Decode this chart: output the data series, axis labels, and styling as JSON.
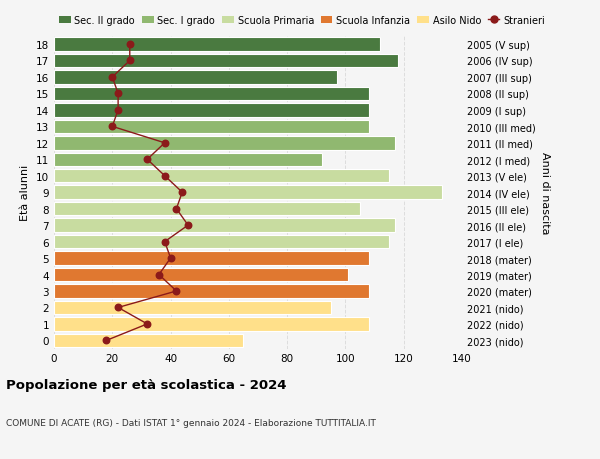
{
  "ages": [
    0,
    1,
    2,
    3,
    4,
    5,
    6,
    7,
    8,
    9,
    10,
    11,
    12,
    13,
    14,
    15,
    16,
    17,
    18
  ],
  "right_labels": [
    "2023 (nido)",
    "2022 (nido)",
    "2021 (nido)",
    "2020 (mater)",
    "2019 (mater)",
    "2018 (mater)",
    "2017 (I ele)",
    "2016 (II ele)",
    "2015 (III ele)",
    "2014 (IV ele)",
    "2013 (V ele)",
    "2012 (I med)",
    "2011 (II med)",
    "2010 (III med)",
    "2009 (I sup)",
    "2008 (II sup)",
    "2007 (III sup)",
    "2006 (IV sup)",
    "2005 (V sup)"
  ],
  "bar_values": [
    65,
    108,
    95,
    108,
    101,
    108,
    115,
    117,
    105,
    133,
    115,
    92,
    117,
    108,
    108,
    108,
    97,
    118,
    112
  ],
  "bar_colors": [
    "#FFE08A",
    "#FFE08A",
    "#FFE08A",
    "#E07830",
    "#E07830",
    "#E07830",
    "#C8DCA0",
    "#C8DCA0",
    "#C8DCA0",
    "#C8DCA0",
    "#C8DCA0",
    "#90B870",
    "#90B870",
    "#90B870",
    "#4A7A40",
    "#4A7A40",
    "#4A7A40",
    "#4A7A40",
    "#4A7A40"
  ],
  "stranieri_values": [
    18,
    32,
    22,
    42,
    36,
    40,
    38,
    46,
    42,
    44,
    38,
    32,
    38,
    20,
    22,
    22,
    20,
    26,
    26
  ],
  "xlim": [
    0,
    140
  ],
  "xticks": [
    0,
    20,
    40,
    60,
    80,
    100,
    120,
    140
  ],
  "ylabel_left": "Età alunni",
  "ylabel_right": "Anni di nascita",
  "title": "Popolazione per età scolastica - 2024",
  "subtitle": "COMUNE DI ACATE (RG) - Dati ISTAT 1° gennaio 2024 - Elaborazione TUTTITALIA.IT",
  "legend_labels": [
    "Sec. II grado",
    "Sec. I grado",
    "Scuola Primaria",
    "Scuola Infanzia",
    "Asilo Nido",
    "Stranieri"
  ],
  "legend_colors": [
    "#4A7A40",
    "#90B870",
    "#C8DCA0",
    "#E07830",
    "#FFE08A",
    "#8B1A1A"
  ],
  "bg_color": "#F5F5F5",
  "grid_color": "#DDDDDD"
}
